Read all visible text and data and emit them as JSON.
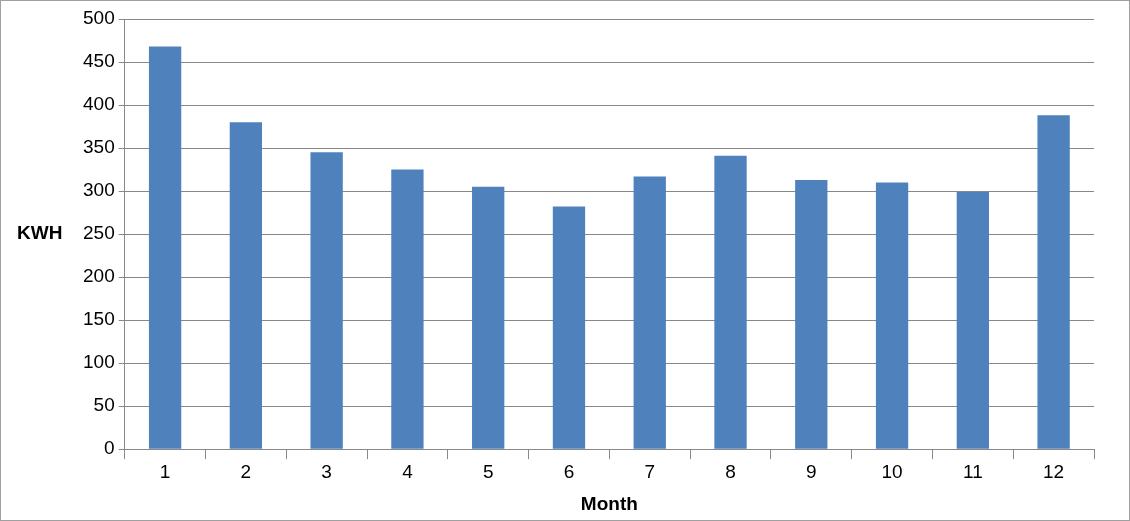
{
  "chart_data": {
    "type": "bar",
    "xlabel": "Month",
    "ylabel": "KWH",
    "categories": [
      "1",
      "2",
      "3",
      "4",
      "5",
      "6",
      "7",
      "8",
      "9",
      "10",
      "11",
      "12"
    ],
    "values": [
      468,
      380,
      345,
      325,
      305,
      282,
      317,
      341,
      313,
      310,
      299,
      388
    ],
    "color": "#4f81bd",
    "ylim": [
      0,
      500
    ],
    "yticks": [
      0,
      50,
      100,
      150,
      200,
      250,
      300,
      350,
      400,
      450,
      500
    ],
    "grid": "y",
    "legend": false
  }
}
